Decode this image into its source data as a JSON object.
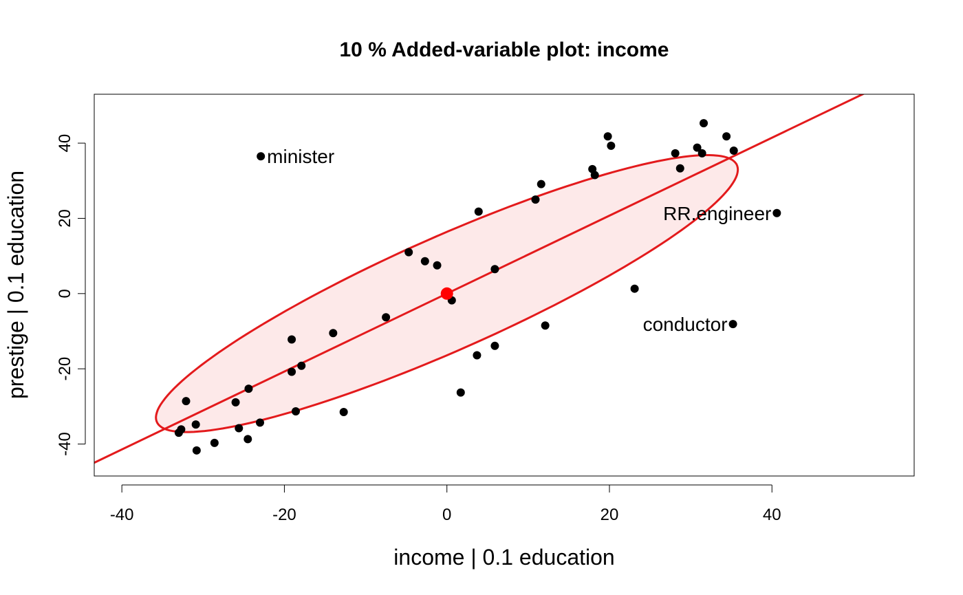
{
  "chart_data": {
    "type": "scatter",
    "title": "10 % Added-variable plot: income",
    "xlabel": "income |  0.1 education",
    "ylabel": "prestige |  0.1 education",
    "xlim": [
      -43.4,
      57.5
    ],
    "ylim": [
      -48.5,
      53.0
    ],
    "xticks": [
      -40,
      -20,
      0,
      20,
      40
    ],
    "yticks": [
      -40,
      -20,
      0,
      20,
      40
    ],
    "grid": false,
    "colors": {
      "points": "#000000",
      "line": "#e31a1c",
      "ellipse_fill": "#fde9e9",
      "center": "#ff0000"
    },
    "points": [
      {
        "x": 31.6,
        "y": 45.3
      },
      {
        "x": 34.4,
        "y": 41.8
      },
      {
        "x": 35.3,
        "y": 38.0
      },
      {
        "x": 30.8,
        "y": 38.8
      },
      {
        "x": 31.4,
        "y": 37.3
      },
      {
        "x": 28.1,
        "y": 37.3
      },
      {
        "x": 28.7,
        "y": 33.3
      },
      {
        "x": 19.8,
        "y": 41.8
      },
      {
        "x": 20.2,
        "y": 39.3
      },
      {
        "x": 17.9,
        "y": 33.1
      },
      {
        "x": 18.2,
        "y": 31.5
      },
      {
        "x": 11.6,
        "y": 29.1
      },
      {
        "x": 10.9,
        "y": 25.0
      },
      {
        "x": 3.9,
        "y": 21.8
      },
      {
        "x": 40.6,
        "y": 21.4
      },
      {
        "x": -4.7,
        "y": 11.0
      },
      {
        "x": -2.7,
        "y": 8.6
      },
      {
        "x": -1.2,
        "y": 7.5
      },
      {
        "x": 5.9,
        "y": 6.5
      },
      {
        "x": 23.1,
        "y": 1.3
      },
      {
        "x": 0.6,
        "y": -1.8
      },
      {
        "x": -7.5,
        "y": -6.3
      },
      {
        "x": 12.1,
        "y": -8.5
      },
      {
        "x": 35.2,
        "y": -8.1
      },
      {
        "x": -14.0,
        "y": -10.5
      },
      {
        "x": -19.1,
        "y": -12.2
      },
      {
        "x": 5.9,
        "y": -13.9
      },
      {
        "x": 3.7,
        "y": -16.4
      },
      {
        "x": -17.9,
        "y": -19.2
      },
      {
        "x": -19.1,
        "y": -20.8
      },
      {
        "x": 1.7,
        "y": -26.3
      },
      {
        "x": -24.4,
        "y": -25.3
      },
      {
        "x": -32.1,
        "y": -28.6
      },
      {
        "x": -26.0,
        "y": -28.9
      },
      {
        "x": -18.6,
        "y": -31.3
      },
      {
        "x": -12.7,
        "y": -31.5
      },
      {
        "x": -23.0,
        "y": -34.3
      },
      {
        "x": -30.9,
        "y": -34.8
      },
      {
        "x": -25.6,
        "y": -35.8
      },
      {
        "x": -32.7,
        "y": -36.1
      },
      {
        "x": -33.0,
        "y": -37.0
      },
      {
        "x": -24.5,
        "y": -38.7
      },
      {
        "x": -28.6,
        "y": -39.7
      },
      {
        "x": -30.8,
        "y": -41.7
      },
      {
        "x": -22.9,
        "y": 36.5
      }
    ],
    "labeled_points": [
      {
        "name": "minister",
        "x": -22.9,
        "y": 36.5,
        "anchor": "start"
      },
      {
        "name": "RR.engineer",
        "x": 40.6,
        "y": 21.4,
        "anchor": "end"
      },
      {
        "name": "conductor",
        "x": 35.2,
        "y": -8.1,
        "anchor": "end"
      }
    ],
    "regression_line": {
      "intercept": 0,
      "slope": 1.036
    },
    "center": {
      "x": 0,
      "y": 0
    },
    "ellipse": {
      "cx": 0,
      "cy": 0,
      "a": 50.0,
      "b": 11.75,
      "angle_deg": 45.9
    }
  }
}
